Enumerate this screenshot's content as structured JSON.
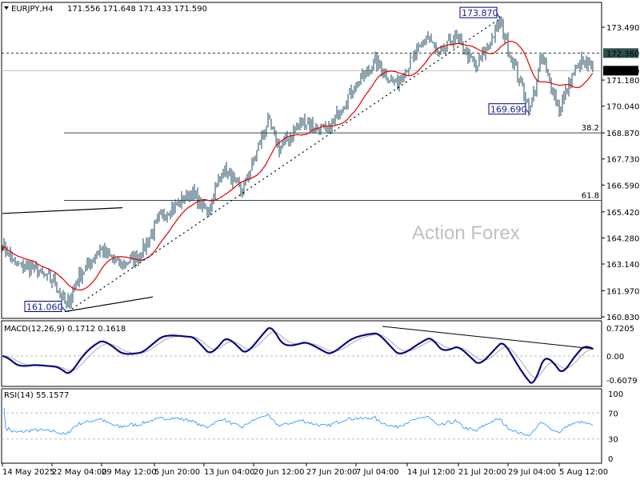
{
  "chart_data": {
    "type": "ohlc",
    "title": "EURJPY,H4",
    "header_values": "171.556 171.648 171.433 171.590",
    "watermark": "Action Forex",
    "bar_count": 370,
    "ylim": [
      160.7,
      174.4
    ],
    "y_ticks": [
      "173.490",
      "172.360",
      "171.590",
      "171.180",
      "170.040",
      "168.870",
      "167.730",
      "166.590",
      "165.420",
      "164.280",
      "163.140",
      "161.970",
      "160.830"
    ],
    "y_tick_values": [
      173.49,
      172.36,
      171.59,
      171.18,
      170.04,
      168.87,
      167.73,
      166.59,
      165.42,
      164.28,
      163.14,
      161.97,
      160.83
    ],
    "x_ticks": [
      {
        "bar": 0,
        "label": "14 May 2025"
      },
      {
        "bar": 31,
        "label": "22 May 04:00"
      },
      {
        "bar": 62,
        "label": "29 May 12:00"
      },
      {
        "bar": 95,
        "label": "5 Jun 20:00"
      },
      {
        "bar": 126,
        "label": "13 Jun 04:00"
      },
      {
        "bar": 157,
        "label": "20 Jun 12:00"
      },
      {
        "bar": 190,
        "label": "27 Jun 20:00"
      },
      {
        "bar": 221,
        "label": "7 Jul 04:00"
      },
      {
        "bar": 253,
        "label": "14 Jul 12:00"
      },
      {
        "bar": 285,
        "label": "21 Jul 20:00"
      },
      {
        "bar": 316,
        "label": "29 Jul 04:00"
      },
      {
        "bar": 348,
        "label": "5 Aug 12:00"
      }
    ],
    "close_waypoints": [
      [
        0,
        164.0
      ],
      [
        8,
        163.1
      ],
      [
        18,
        163.0
      ],
      [
        33,
        162.3
      ],
      [
        40,
        161.3
      ],
      [
        48,
        162.6
      ],
      [
        61,
        163.8
      ],
      [
        73,
        163.1
      ],
      [
        86,
        163.5
      ],
      [
        98,
        165.1
      ],
      [
        118,
        166.3
      ],
      [
        128,
        165.4
      ],
      [
        138,
        167.3
      ],
      [
        150,
        166.3
      ],
      [
        166,
        169.4
      ],
      [
        173,
        168.2
      ],
      [
        188,
        169.4
      ],
      [
        203,
        168.9
      ],
      [
        216,
        170.5
      ],
      [
        233,
        172.0
      ],
      [
        246,
        171.0
      ],
      [
        266,
        173.1
      ],
      [
        273,
        172.2
      ],
      [
        283,
        173.1
      ],
      [
        296,
        171.7
      ],
      [
        311,
        173.7
      ],
      [
        318,
        172.2
      ],
      [
        330,
        169.9
      ],
      [
        337,
        172.2
      ],
      [
        348,
        169.9
      ],
      [
        355,
        171.2
      ],
      [
        362,
        172.0
      ],
      [
        369,
        171.6
      ]
    ],
    "moving_average_period": 20,
    "current_price": {
      "value": 171.59,
      "label": "171.590"
    },
    "resistance": {
      "value": 172.36,
      "label": "172.360"
    },
    "fib_levels": [
      {
        "value": 168.87,
        "label": "38.2"
      },
      {
        "value": 165.92,
        "label": "61.8"
      }
    ],
    "annotations": [
      {
        "label": "173.870",
        "bar": 311,
        "price": 173.87
      },
      {
        "label": "169.690",
        "bar": 330,
        "price": 169.69
      },
      {
        "label": "161.060",
        "bar": 40,
        "price": 161.06
      }
    ],
    "trendlines": [
      {
        "from": [
          0,
          165.35
        ],
        "to": [
          75,
          165.6
        ],
        "style": "solid"
      },
      {
        "from": [
          39,
          161.06
        ],
        "to": [
          94,
          161.7
        ],
        "style": "solid"
      },
      {
        "from": [
          41,
          161.06
        ],
        "to": [
          311,
          173.87
        ],
        "style": "dotted"
      }
    ],
    "macd": {
      "label": "MACD(12,26,9) 0.1712 0.1618",
      "ticks": [
        "0.7205",
        "0.00",
        "-0.6079"
      ],
      "tick_values": [
        0.7205,
        0,
        -0.6079
      ]
    },
    "rsi": {
      "label": "RSI(14) 55.1577",
      "ticks": [
        "100",
        "70",
        "30",
        "0"
      ],
      "tick_values": [
        100,
        70,
        30,
        0
      ]
    }
  }
}
